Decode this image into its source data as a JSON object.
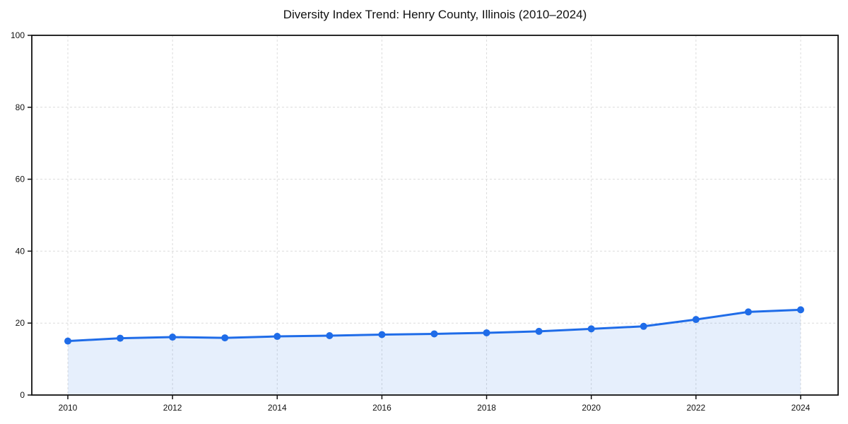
{
  "title": "Diversity Index Trend: Henry County, Illinois (2010–2024)",
  "chart_data": {
    "type": "line",
    "title": "Diversity Index Trend: Henry County, Illinois (2010–2024)",
    "x": [
      2010,
      2011,
      2012,
      2013,
      2014,
      2015,
      2016,
      2017,
      2018,
      2019,
      2020,
      2021,
      2022,
      2023,
      2024
    ],
    "series": [
      {
        "name": "Diversity Index",
        "values": [
          15.0,
          15.8,
          16.1,
          15.9,
          16.3,
          16.5,
          16.8,
          17.0,
          17.3,
          17.7,
          18.4,
          19.1,
          21.0,
          23.1,
          23.7
        ]
      }
    ],
    "xlabel": "",
    "ylabel": "",
    "xticks": [
      2010,
      2012,
      2014,
      2016,
      2018,
      2020,
      2022,
      2024
    ],
    "yticks": [
      0,
      20,
      40,
      60,
      80,
      100
    ],
    "ylim": [
      0,
      100
    ],
    "grid": true,
    "grid_style": "dashed",
    "legend_position": "none",
    "line_color": "#1f6ce8",
    "marker_color": "#1f6ce8",
    "fill_color": "rgba(31,108,232,0.11)",
    "marker": "circle"
  }
}
